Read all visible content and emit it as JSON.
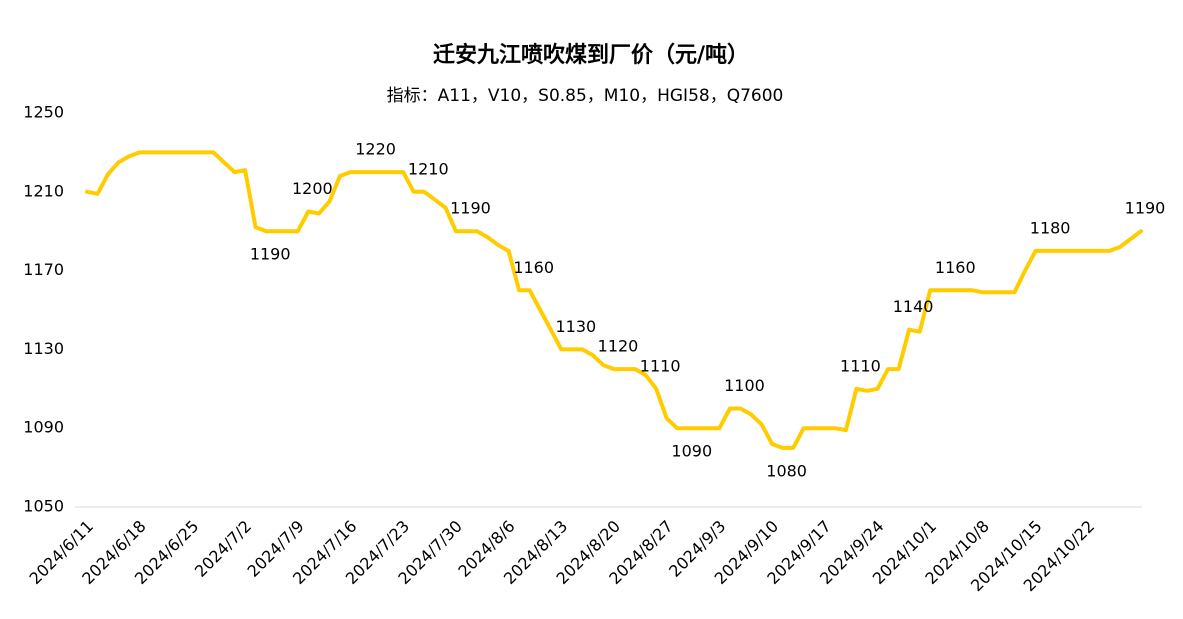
{
  "chart_data": {
    "type": "line",
    "title": "迁安九江喷吹煤到厂价（元/吨）",
    "subtitle": "指标：A11，V10，S0.85，M10，HGI58，Q7600",
    "color": "#FFCC00",
    "categories": [
      "2024/6/11",
      null,
      null,
      null,
      null,
      "2024/6/18",
      null,
      null,
      null,
      null,
      "2024/6/25",
      null,
      null,
      null,
      null,
      "2024/7/2",
      null,
      null,
      null,
      null,
      "2024/7/9",
      null,
      null,
      null,
      null,
      "2024/7/16",
      null,
      null,
      null,
      null,
      "2024/7/23",
      null,
      null,
      null,
      null,
      "2024/7/30",
      null,
      null,
      null,
      null,
      "2024/8/6",
      null,
      null,
      null,
      null,
      "2024/8/13",
      null,
      null,
      null,
      null,
      "2024/8/20",
      null,
      null,
      null,
      null,
      "2024/8/27",
      null,
      null,
      null,
      null,
      "2024/9/3",
      null,
      null,
      null,
      null,
      "2024/9/10",
      null,
      null,
      null,
      null,
      "2024/9/17",
      null,
      null,
      null,
      null,
      "2024/9/24",
      null,
      null,
      null,
      null,
      "2024/10/1",
      null,
      null,
      null,
      null,
      "2024/10/8",
      null,
      null,
      null,
      null,
      "2024/10/15",
      null,
      null,
      null,
      null,
      "2024/10/22",
      null,
      null,
      null,
      null,
      null
    ],
    "values": [
      1210,
      1209,
      1219,
      1225,
      1228,
      1230,
      1230,
      1230,
      1230,
      1230,
      1230,
      1230,
      1230,
      1225,
      1220,
      1221,
      1192,
      1190,
      1190,
      1190,
      1190,
      1200,
      1199,
      1205,
      1218,
      1220,
      1220,
      1220,
      1220,
      1220,
      1220,
      1210,
      1210,
      1206,
      1202,
      1190,
      1190,
      1190,
      1187,
      1183,
      1180,
      1160,
      1160,
      1150,
      1140,
      1130,
      1130,
      1130,
      1127,
      1122,
      1120,
      1120,
      1120,
      1117,
      1110,
      1095,
      1090,
      1090,
      1090,
      1090,
      1090,
      1100,
      1100,
      1097,
      1092,
      1082,
      1080,
      1080,
      1090,
      1090,
      1090,
      1090,
      1089,
      1110,
      1109,
      1110,
      1120,
      1120,
      1140,
      1139,
      1160,
      1160,
      1160,
      1160,
      1160,
      1159,
      1159,
      1159,
      1159,
      1170,
      1180,
      1180,
      1180,
      1180,
      1180,
      1180,
      1180,
      1180,
      1182,
      1186,
      1190
    ],
    "data_labels": [
      null,
      null,
      null,
      null,
      null,
      null,
      null,
      null,
      null,
      null,
      null,
      null,
      null,
      null,
      null,
      null,
      null,
      1190,
      null,
      null,
      null,
      1200,
      null,
      null,
      null,
      null,
      null,
      1220,
      null,
      null,
      null,
      null,
      1210,
      null,
      null,
      null,
      1190,
      null,
      null,
      null,
      null,
      null,
      1160,
      null,
      null,
      null,
      1130,
      null,
      null,
      null,
      1120,
      null,
      null,
      null,
      1110,
      null,
      null,
      1090,
      null,
      null,
      null,
      null,
      1100,
      null,
      null,
      null,
      1080,
      null,
      null,
      null,
      null,
      null,
      null,
      1110,
      null,
      null,
      null,
      null,
      1140,
      null,
      null,
      null,
      1160,
      null,
      null,
      null,
      null,
      null,
      null,
      null,
      null,
      1180,
      null,
      null,
      null,
      null,
      null,
      null,
      null,
      null,
      1190
    ],
    "ylim": [
      1050,
      1250
    ],
    "yticks": [
      1050,
      1090,
      1130,
      1170,
      1210,
      1250
    ],
    "grid": false
  }
}
